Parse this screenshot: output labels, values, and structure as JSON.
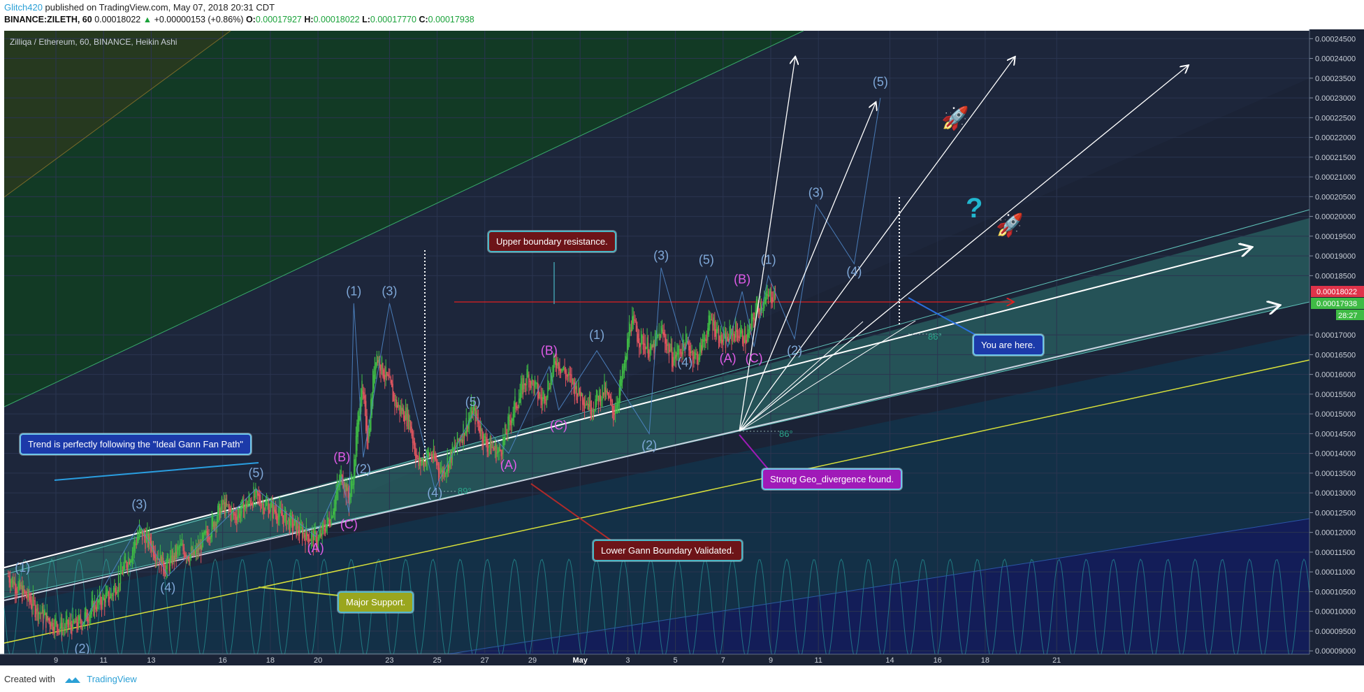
{
  "header": {
    "author": "Glitch420",
    "published": "published on TradingView.com, May 07, 2018 20:31 CDT",
    "symbol": "BINANCE:ZILETH, 60",
    "last": "0.00018022",
    "change": "+0.00000153 (+0.86%)",
    "o_label": "O:",
    "o": "0.00017927",
    "h_label": "H:",
    "h": "0.00018022",
    "l_label": "L:",
    "l": "0.00017770",
    "c_label": "C:",
    "c": "0.00017938"
  },
  "chart_title": "Zilliqa / Ethereum, 60, BINANCE, Heikin Ashi",
  "price_tags": {
    "last": "0.00018022",
    "close": "0.00017938",
    "countdown": "28:27"
  },
  "annotations": {
    "upper": "Upper boundary resistance.",
    "trend": "Trend is perfectly following the \"Ideal Gann Fan Path\"",
    "lower": "Lower Gann Boundary Validated.",
    "major": "Major Support.",
    "geo": "Strong Geo_divergence found.",
    "here": "You are here.",
    "angle1": "89°",
    "angle2": "86°",
    "angle3": "86°"
  },
  "footer": {
    "created": "Created with",
    "brand": "TradingView"
  },
  "colors": {
    "background": "#1b2336",
    "up": "#3fbb45",
    "down": "#e05660",
    "fan_channel": "#5ec7c0",
    "support": "#d8e03a",
    "resistance": "#e02020"
  },
  "chart_data": {
    "type": "candlestick",
    "title": "Zilliqa / Ethereum, 60, BINANCE, Heikin Ashi",
    "x_tick_labels": [
      "9",
      "11",
      "13",
      "16",
      "18",
      "20",
      "23",
      "25",
      "27",
      "29",
      "May",
      "3",
      "5",
      "7",
      "9",
      "11",
      "14",
      "16",
      "18",
      "21"
    ],
    "y_tick_labels": [
      "0.00024500",
      "0.00024000",
      "0.00023500",
      "0.00023000",
      "0.00022500",
      "0.00022000",
      "0.00021500",
      "0.00021000",
      "0.00020500",
      "0.00020000",
      "0.00019500",
      "0.00019000",
      "0.00018500",
      "0.00017000",
      "0.00016500",
      "0.00016000",
      "0.00015500",
      "0.00015000",
      "0.00014500",
      "0.00014000",
      "0.00013500",
      "0.00013000",
      "0.00012500",
      "0.00012000",
      "0.00011500",
      "0.00011000",
      "0.00010500",
      "0.00010000",
      "0.00009500",
      "0.00009000"
    ],
    "ylim": [
      8.95e-05,
      0.000247
    ],
    "price_path": [
      [
        7.0,
        0.000109
      ],
      [
        7.7,
        0.000104
      ],
      [
        8.6,
        9.8e-05
      ],
      [
        9.3,
        9.6e-05
      ],
      [
        10.0,
        9.7e-05
      ],
      [
        10.7,
        0.000102
      ],
      [
        11.3,
        0.000104
      ],
      [
        12.0,
        0.000113
      ],
      [
        12.5,
        0.00012
      ],
      [
        13.0,
        0.000117
      ],
      [
        13.6,
        0.000111
      ],
      [
        14.2,
        0.000116
      ],
      [
        14.8,
        0.000114
      ],
      [
        15.3,
        0.000119
      ],
      [
        16.0,
        0.000127
      ],
      [
        16.5,
        0.000124
      ],
      [
        17.3,
        0.000129
      ],
      [
        17.8,
        0.000127
      ],
      [
        18.5,
        0.000124
      ],
      [
        19.3,
        0.00012
      ],
      [
        20.0,
        0.000118
      ],
      [
        20.5,
        0.000124
      ],
      [
        21.0,
        0.000135
      ],
      [
        21.3,
        0.000128
      ],
      [
        21.5,
        0.000136
      ],
      [
        21.8,
        0.000158
      ],
      [
        22.1,
        0.000143
      ],
      [
        22.4,
        0.000166
      ],
      [
        22.8,
        0.00016
      ],
      [
        23.3,
        0.000152
      ],
      [
        23.8,
        0.000149
      ],
      [
        24.2,
        0.000137
      ],
      [
        24.7,
        0.00014
      ],
      [
        25.2,
        0.000135
      ],
      [
        25.8,
        0.000142
      ],
      [
        26.5,
        0.000151
      ],
      [
        27.0,
        0.000143
      ],
      [
        27.6,
        0.00014
      ],
      [
        28.2,
        0.000151
      ],
      [
        28.8,
        0.00016
      ],
      [
        29.4,
        0.000153
      ],
      [
        30.0,
        0.000164
      ],
      [
        30.5,
        0.000159
      ],
      [
        31.0,
        0.000155
      ],
      [
        31.5,
        0.000152
      ],
      [
        32.0,
        0.000156
      ],
      [
        32.4,
        0.00015
      ],
      [
        32.9,
        0.000163
      ],
      [
        33.1,
        0.000174
      ],
      [
        33.5,
        0.000169
      ],
      [
        34.0,
        0.000166
      ],
      [
        34.4,
        0.000171
      ],
      [
        34.9,
        0.000164
      ],
      [
        35.4,
        0.000168
      ],
      [
        35.9,
        0.000164
      ],
      [
        36.5,
        0.000174
      ],
      [
        37.0,
        0.000168
      ],
      [
        37.5,
        0.000171
      ],
      [
        38.0,
        0.000169
      ],
      [
        38.4,
        0.000177
      ],
      [
        38.8,
        0.000179
      ],
      [
        39.2,
        0.000181
      ]
    ],
    "wave_labels": [
      {
        "t": "(1)",
        "x": 7.6,
        "y": 0.00011
      },
      {
        "t": "(2)",
        "x": 10.1,
        "y": 8.95e-05
      },
      {
        "t": "(3)",
        "x": 12.5,
        "y": 0.000126
      },
      {
        "t": "(4)",
        "x": 13.7,
        "y": 0.000105
      },
      {
        "t": "(5)",
        "x": 17.4,
        "y": 0.000134
      },
      {
        "t": "(A)",
        "x": 19.9,
        "y": 0.000115
      },
      {
        "t": "(B)",
        "x": 21.0,
        "y": 0.000138
      },
      {
        "t": "(C)",
        "x": 21.3,
        "y": 0.000121
      },
      {
        "t": "(2)",
        "x": 21.9,
        "y": 0.000135
      },
      {
        "t": "(1)",
        "x": 21.5,
        "y": 0.00018
      },
      {
        "t": "(3)",
        "x": 23.0,
        "y": 0.00018
      },
      {
        "t": "(4)",
        "x": 24.9,
        "y": 0.000129
      },
      {
        "t": "(5)",
        "x": 26.5,
        "y": 0.000152
      },
      {
        "t": "(A)",
        "x": 28.0,
        "y": 0.000136
      },
      {
        "t": "(B)",
        "x": 29.7,
        "y": 0.000165
      },
      {
        "t": "(C)",
        "x": 30.1,
        "y": 0.000146
      },
      {
        "t": "(1)",
        "x": 31.7,
        "y": 0.000169
      },
      {
        "t": "(2)",
        "x": 33.9,
        "y": 0.000141
      },
      {
        "t": "(3)",
        "x": 34.4,
        "y": 0.000189
      },
      {
        "t": "(4)",
        "x": 35.4,
        "y": 0.000162
      },
      {
        "t": "(5)",
        "x": 36.3,
        "y": 0.000188
      },
      {
        "t": "(A)",
        "x": 37.2,
        "y": 0.000163
      },
      {
        "t": "(B)",
        "x": 37.8,
        "y": 0.000183
      },
      {
        "t": "(C)",
        "x": 38.3,
        "y": 0.000163
      },
      {
        "t": "(1)",
        "x": 38.9,
        "y": 0.000188
      },
      {
        "t": "(2)",
        "x": 40.0,
        "y": 0.000165
      },
      {
        "t": "(3)",
        "x": 40.9,
        "y": 0.000205
      },
      {
        "t": "(4)",
        "x": 42.5,
        "y": 0.000185
      },
      {
        "t": "(5)",
        "x": 43.6,
        "y": 0.000233
      }
    ]
  }
}
